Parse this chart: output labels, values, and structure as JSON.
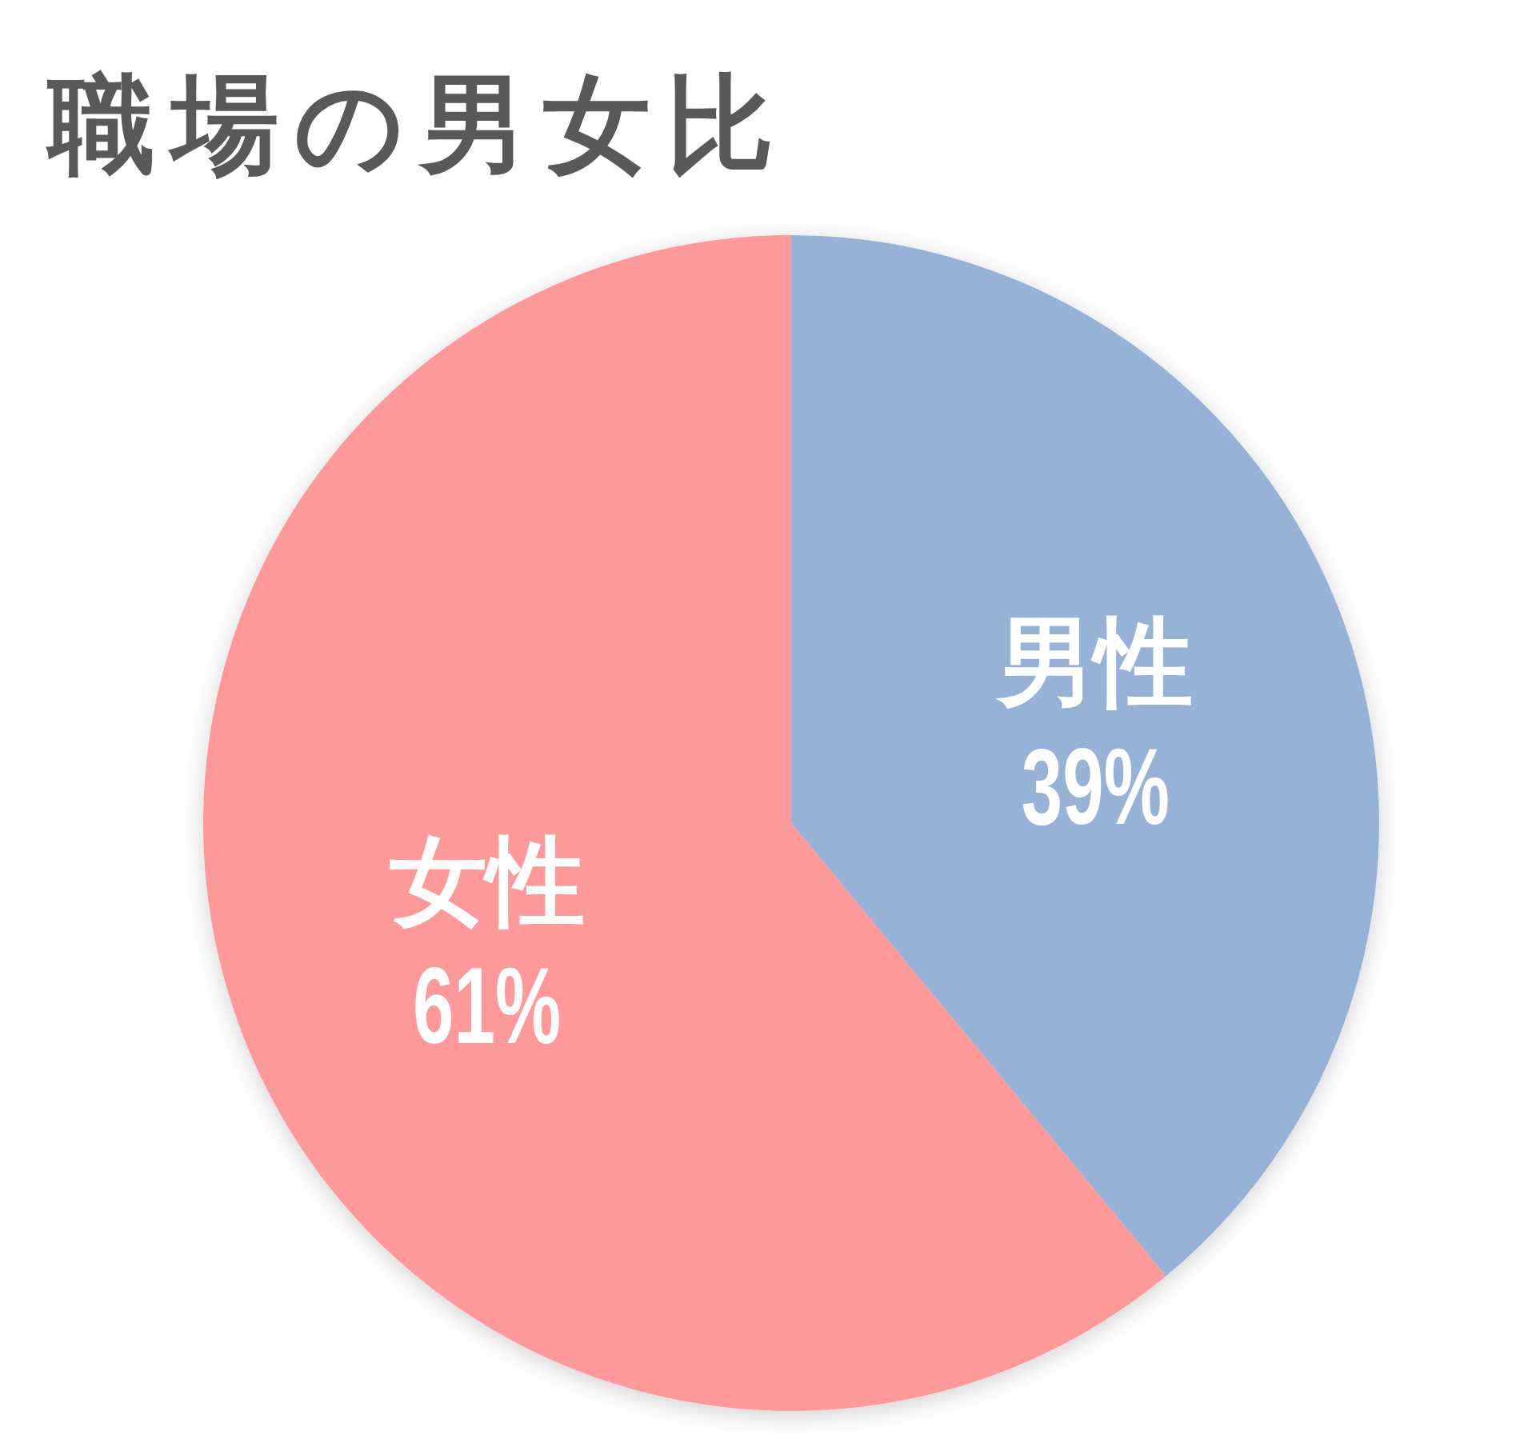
{
  "chart_data": {
    "type": "pie",
    "title": "職場の男女比",
    "categories": [
      "男性",
      "女性"
    ],
    "values": [
      39,
      61
    ],
    "colors": [
      "#96b3d7",
      "#fd9999"
    ],
    "value_labels": [
      "39%",
      "61%"
    ]
  }
}
